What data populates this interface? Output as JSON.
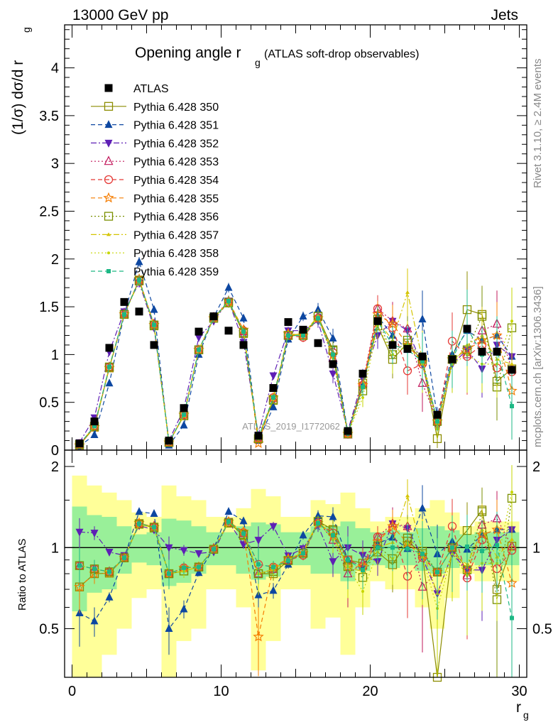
{
  "header": {
    "left": "13000 GeV pp",
    "right": "Jets"
  },
  "side_labels": {
    "rivet": "Rivet 3.1.10, ≥ 2.4M events",
    "mcplots": "mcplots.cern.ch [arXiv:1306.3436]"
  },
  "watermark": "ATLAS_2019_I1772062",
  "chart_data": {
    "type": "scatter",
    "title_main": "Opening angle r",
    "title_sub": "g",
    "title_note": "(ATLAS soft-drop observables)",
    "xlabel_main": "r",
    "xlabel_sub": "g",
    "ylabel": "(1/σ) dσ/d r",
    "ylabel_sub": "g",
    "ratio_ylabel": "Ratio to ATLAS",
    "xlim": [
      -0.5,
      30.5
    ],
    "ylim": [
      0,
      4.45
    ],
    "ratio_ylim": [
      0.33,
      2.3
    ],
    "x_ticks": [
      0,
      10,
      20,
      30
    ],
    "y_ticks": [
      0,
      0.5,
      1,
      1.5,
      2,
      2.5,
      3,
      3.5,
      4
    ],
    "ratio_ticks": [
      0.5,
      1,
      2
    ],
    "legend_position": "top-left",
    "x": [
      0.5,
      1.5,
      2.5,
      3.5,
      4.5,
      5.5,
      6.5,
      7.5,
      8.5,
      9.5,
      10.5,
      11.5,
      12.5,
      13.5,
      14.5,
      15.5,
      16.5,
      17.5,
      18.5,
      19.5,
      20.5,
      21.5,
      22.5,
      23.5,
      24.5,
      25.5,
      26.5,
      27.5,
      28.5,
      29.5
    ],
    "data": {
      "name": "ATLAS",
      "values": [
        0.07,
        0.3,
        1.07,
        1.55,
        1.45,
        1.1,
        0.1,
        0.44,
        1.24,
        1.4,
        1.25,
        1.1,
        0.15,
        0.65,
        1.34,
        1.26,
        1.12,
        0.9,
        0.2,
        0.8,
        1.35,
        1.1,
        1.06,
        0.98,
        0.37,
        0.95,
        1.27,
        1.03,
        1.03,
        0.84
      ],
      "band_inner": [
        0.42,
        0.32,
        0.3,
        0.2,
        0.12,
        0.14,
        0.28,
        0.26,
        0.2,
        0.14,
        0.14,
        0.2,
        0.24,
        0.22,
        0.14,
        0.14,
        0.2,
        0.2,
        0.25,
        0.18,
        0.14,
        0.16,
        0.14,
        0.18,
        0.2,
        0.16,
        0.12,
        0.14,
        0.14,
        0.14
      ],
      "band_outer": [
        0.85,
        0.7,
        0.6,
        0.5,
        0.35,
        0.3,
        0.7,
        0.55,
        0.5,
        0.3,
        0.3,
        0.4,
        0.65,
        0.55,
        0.3,
        0.3,
        0.5,
        0.45,
        0.6,
        0.4,
        0.25,
        0.3,
        0.3,
        0.4,
        0.5,
        0.35,
        0.2,
        0.25,
        0.25,
        0.25
      ]
    },
    "series": [
      {
        "name": "Pythia 6.428 350",
        "color": "#8c8c00",
        "marker": "square-open",
        "dash": "solid",
        "values": [
          0.05,
          0.24,
          0.86,
          1.42,
          1.78,
          1.3,
          0.08,
          0.36,
          1.05,
          1.38,
          1.55,
          1.22,
          0.12,
          0.52,
          1.2,
          1.2,
          1.4,
          1.05,
          0.18,
          0.7,
          1.3,
          0.95,
          1.12,
          0.93,
          0.12,
          0.95,
          1.47,
          1.42,
          0.72,
          0.85
        ],
        "errors": [
          0.01,
          0.02,
          0.03,
          0.04,
          0.05,
          0.04,
          0.01,
          0.02,
          0.03,
          0.04,
          0.05,
          0.04,
          0.02,
          0.03,
          0.04,
          0.05,
          0.07,
          0.1,
          0.04,
          0.1,
          0.14,
          0.2,
          0.25,
          0.3,
          0.1,
          0.3,
          0.4,
          0.3,
          0.35,
          0.35
        ]
      },
      {
        "name": "Pythia 6.428 351",
        "color": "#0d47a1",
        "marker": "triangle-up",
        "dash": "dashed",
        "values": [
          0.04,
          0.16,
          0.7,
          1.42,
          1.97,
          1.47,
          0.05,
          0.26,
          1.0,
          1.39,
          1.7,
          1.38,
          0.1,
          0.45,
          1.16,
          1.4,
          1.47,
          1.17,
          0.18,
          0.68,
          1.4,
          1.2,
          1.05,
          1.37,
          0.35,
          1.0,
          1.25,
          1.15,
          1.2,
          0.98
        ],
        "errors": [
          0.01,
          0.02,
          0.03,
          0.04,
          0.05,
          0.04,
          0.01,
          0.02,
          0.03,
          0.04,
          0.05,
          0.04,
          0.02,
          0.03,
          0.04,
          0.05,
          0.07,
          0.1,
          0.04,
          0.1,
          0.14,
          0.2,
          0.25,
          0.3,
          0.1,
          0.3,
          0.4,
          0.3,
          0.35,
          0.35
        ]
      },
      {
        "name": "Pythia 6.428 352",
        "color": "#5e1fb5",
        "marker": "triangle-down",
        "dash": "dashdot",
        "values": [
          0.08,
          0.34,
          1.03,
          1.45,
          1.75,
          1.28,
          0.1,
          0.43,
          1.18,
          1.35,
          1.56,
          1.13,
          0.16,
          0.78,
          1.25,
          1.25,
          1.35,
          0.8,
          0.2,
          0.75,
          1.2,
          1.35,
          1.25,
          0.9,
          0.25,
          0.9,
          1.05,
          0.85,
          1.1,
          0.98
        ],
        "errors": [
          0.01,
          0.02,
          0.03,
          0.04,
          0.05,
          0.04,
          0.01,
          0.02,
          0.03,
          0.04,
          0.05,
          0.04,
          0.02,
          0.03,
          0.04,
          0.05,
          0.07,
          0.1,
          0.04,
          0.1,
          0.14,
          0.2,
          0.25,
          0.3,
          0.1,
          0.3,
          0.4,
          0.3,
          0.35,
          0.35
        ]
      },
      {
        "name": "Pythia 6.428 353",
        "color": "#c2185b",
        "marker": "triangle-open",
        "dash": "dotted",
        "values": [
          0.06,
          0.25,
          0.87,
          1.42,
          1.77,
          1.32,
          0.08,
          0.37,
          1.05,
          1.39,
          1.56,
          1.24,
          0.12,
          0.54,
          1.2,
          1.2,
          1.4,
          0.96,
          0.16,
          0.7,
          1.48,
          1.35,
          1.27,
          0.7,
          0.3,
          0.95,
          1.0,
          1.25,
          1.32,
          0.85
        ],
        "errors": [
          0.01,
          0.02,
          0.03,
          0.04,
          0.05,
          0.04,
          0.01,
          0.02,
          0.03,
          0.04,
          0.05,
          0.04,
          0.02,
          0.03,
          0.04,
          0.05,
          0.07,
          0.1,
          0.04,
          0.1,
          0.14,
          0.2,
          0.25,
          0.3,
          0.1,
          0.3,
          0.4,
          0.3,
          0.35,
          0.35
        ]
      },
      {
        "name": "Pythia 6.428 354",
        "color": "#e53935",
        "marker": "circle-open",
        "dash": "dashed",
        "values": [
          0.06,
          0.25,
          0.87,
          1.42,
          1.78,
          1.31,
          0.08,
          0.37,
          1.05,
          1.38,
          1.55,
          1.25,
          0.13,
          0.55,
          1.2,
          1.18,
          1.38,
          1.02,
          0.18,
          0.68,
          1.48,
          1.28,
          0.83,
          0.9,
          0.3,
          1.14,
          0.98,
          1.1,
          0.86,
          0.82
        ],
        "errors": [
          0.01,
          0.02,
          0.03,
          0.04,
          0.05,
          0.04,
          0.01,
          0.02,
          0.03,
          0.04,
          0.05,
          0.04,
          0.02,
          0.03,
          0.04,
          0.05,
          0.07,
          0.1,
          0.04,
          0.1,
          0.14,
          0.2,
          0.25,
          0.3,
          0.1,
          0.3,
          0.4,
          0.3,
          0.35,
          0.35
        ]
      },
      {
        "name": "Pythia 6.428 355",
        "color": "#f57c00",
        "marker": "star-open",
        "dash": "dashed",
        "values": [
          0.05,
          0.24,
          0.86,
          1.42,
          1.79,
          1.31,
          0.08,
          0.37,
          1.05,
          1.38,
          1.56,
          1.26,
          0.07,
          0.55,
          1.22,
          1.2,
          1.38,
          1.0,
          0.17,
          0.68,
          1.42,
          1.32,
          1.1,
          0.92,
          0.3,
          0.95,
          1.05,
          1.15,
          1.2,
          0.62
        ],
        "errors": [
          0.01,
          0.02,
          0.03,
          0.04,
          0.05,
          0.04,
          0.01,
          0.02,
          0.03,
          0.04,
          0.05,
          0.04,
          0.02,
          0.03,
          0.04,
          0.05,
          0.07,
          0.1,
          0.04,
          0.1,
          0.14,
          0.2,
          0.25,
          0.3,
          0.1,
          0.3,
          0.4,
          0.3,
          0.35,
          0.35
        ]
      },
      {
        "name": "Pythia 6.428 356",
        "color": "#7a8f00",
        "marker": "square-open",
        "dash": "dotted",
        "values": [
          0.06,
          0.25,
          0.87,
          1.42,
          1.77,
          1.31,
          0.08,
          0.36,
          1.05,
          1.38,
          1.54,
          1.23,
          0.12,
          0.53,
          1.2,
          1.2,
          1.4,
          1.04,
          0.17,
          0.62,
          1.37,
          1.0,
          1.15,
          0.95,
          0.3,
          0.95,
          1.05,
          1.4,
          0.66,
          1.28
        ],
        "errors": [
          0.01,
          0.02,
          0.03,
          0.04,
          0.05,
          0.04,
          0.01,
          0.02,
          0.03,
          0.04,
          0.05,
          0.04,
          0.02,
          0.03,
          0.04,
          0.05,
          0.07,
          0.1,
          0.04,
          0.1,
          0.14,
          0.2,
          0.25,
          0.3,
          0.1,
          0.3,
          0.4,
          0.3,
          0.35,
          0.35
        ]
      },
      {
        "name": "Pythia 6.428 357",
        "color": "#d4c400",
        "marker": "tri-small",
        "dash": "dashdot",
        "values": [
          0.06,
          0.25,
          0.87,
          1.42,
          1.77,
          1.3,
          0.08,
          0.36,
          1.05,
          1.38,
          1.55,
          1.25,
          0.12,
          0.54,
          1.2,
          1.22,
          1.4,
          1.0,
          0.17,
          0.65,
          1.35,
          1.15,
          1.65,
          0.95,
          0.25,
          0.9,
          1.1,
          1.2,
          0.95,
          0.9
        ],
        "errors": [
          0.01,
          0.02,
          0.03,
          0.04,
          0.05,
          0.04,
          0.01,
          0.02,
          0.03,
          0.04,
          0.05,
          0.04,
          0.02,
          0.03,
          0.04,
          0.05,
          0.07,
          0.1,
          0.04,
          0.1,
          0.14,
          0.2,
          0.25,
          0.3,
          0.1,
          0.3,
          0.4,
          0.3,
          0.35,
          0.35
        ]
      },
      {
        "name": "Pythia 6.428 358",
        "color": "#c6d600",
        "marker": "dot",
        "dash": "dotted",
        "values": [
          0.06,
          0.25,
          0.87,
          1.42,
          1.77,
          1.31,
          0.08,
          0.36,
          1.05,
          1.38,
          1.55,
          1.24,
          0.12,
          0.54,
          1.21,
          1.2,
          1.4,
          0.96,
          0.17,
          0.55,
          1.3,
          1.0,
          1.1,
          0.9,
          0.22,
          0.9,
          1.0,
          0.9,
          0.9,
          1.35
        ],
        "errors": [
          0.01,
          0.02,
          0.03,
          0.04,
          0.05,
          0.04,
          0.01,
          0.02,
          0.03,
          0.04,
          0.05,
          0.04,
          0.02,
          0.03,
          0.04,
          0.05,
          0.07,
          0.1,
          0.04,
          0.1,
          0.14,
          0.2,
          0.25,
          0.3,
          0.1,
          0.3,
          0.4,
          0.3,
          0.35,
          0.35
        ]
      },
      {
        "name": "Pythia 6.428 359",
        "color": "#1db885",
        "marker": "square-small",
        "dash": "dashed",
        "values": [
          0.06,
          0.25,
          0.87,
          1.42,
          1.78,
          1.31,
          0.08,
          0.37,
          1.05,
          1.38,
          1.56,
          1.24,
          0.13,
          0.55,
          1.2,
          1.2,
          1.38,
          1.0,
          0.18,
          0.66,
          1.35,
          1.1,
          1.05,
          0.93,
          0.3,
          0.95,
          1.28,
          1.0,
          1.05,
          0.46
        ],
        "errors": [
          0.01,
          0.02,
          0.03,
          0.04,
          0.05,
          0.04,
          0.01,
          0.02,
          0.03,
          0.04,
          0.05,
          0.04,
          0.02,
          0.03,
          0.04,
          0.05,
          0.07,
          0.1,
          0.04,
          0.1,
          0.14,
          0.2,
          0.25,
          0.3,
          0.1,
          0.3,
          0.4,
          0.3,
          0.35,
          0.35
        ]
      }
    ]
  }
}
